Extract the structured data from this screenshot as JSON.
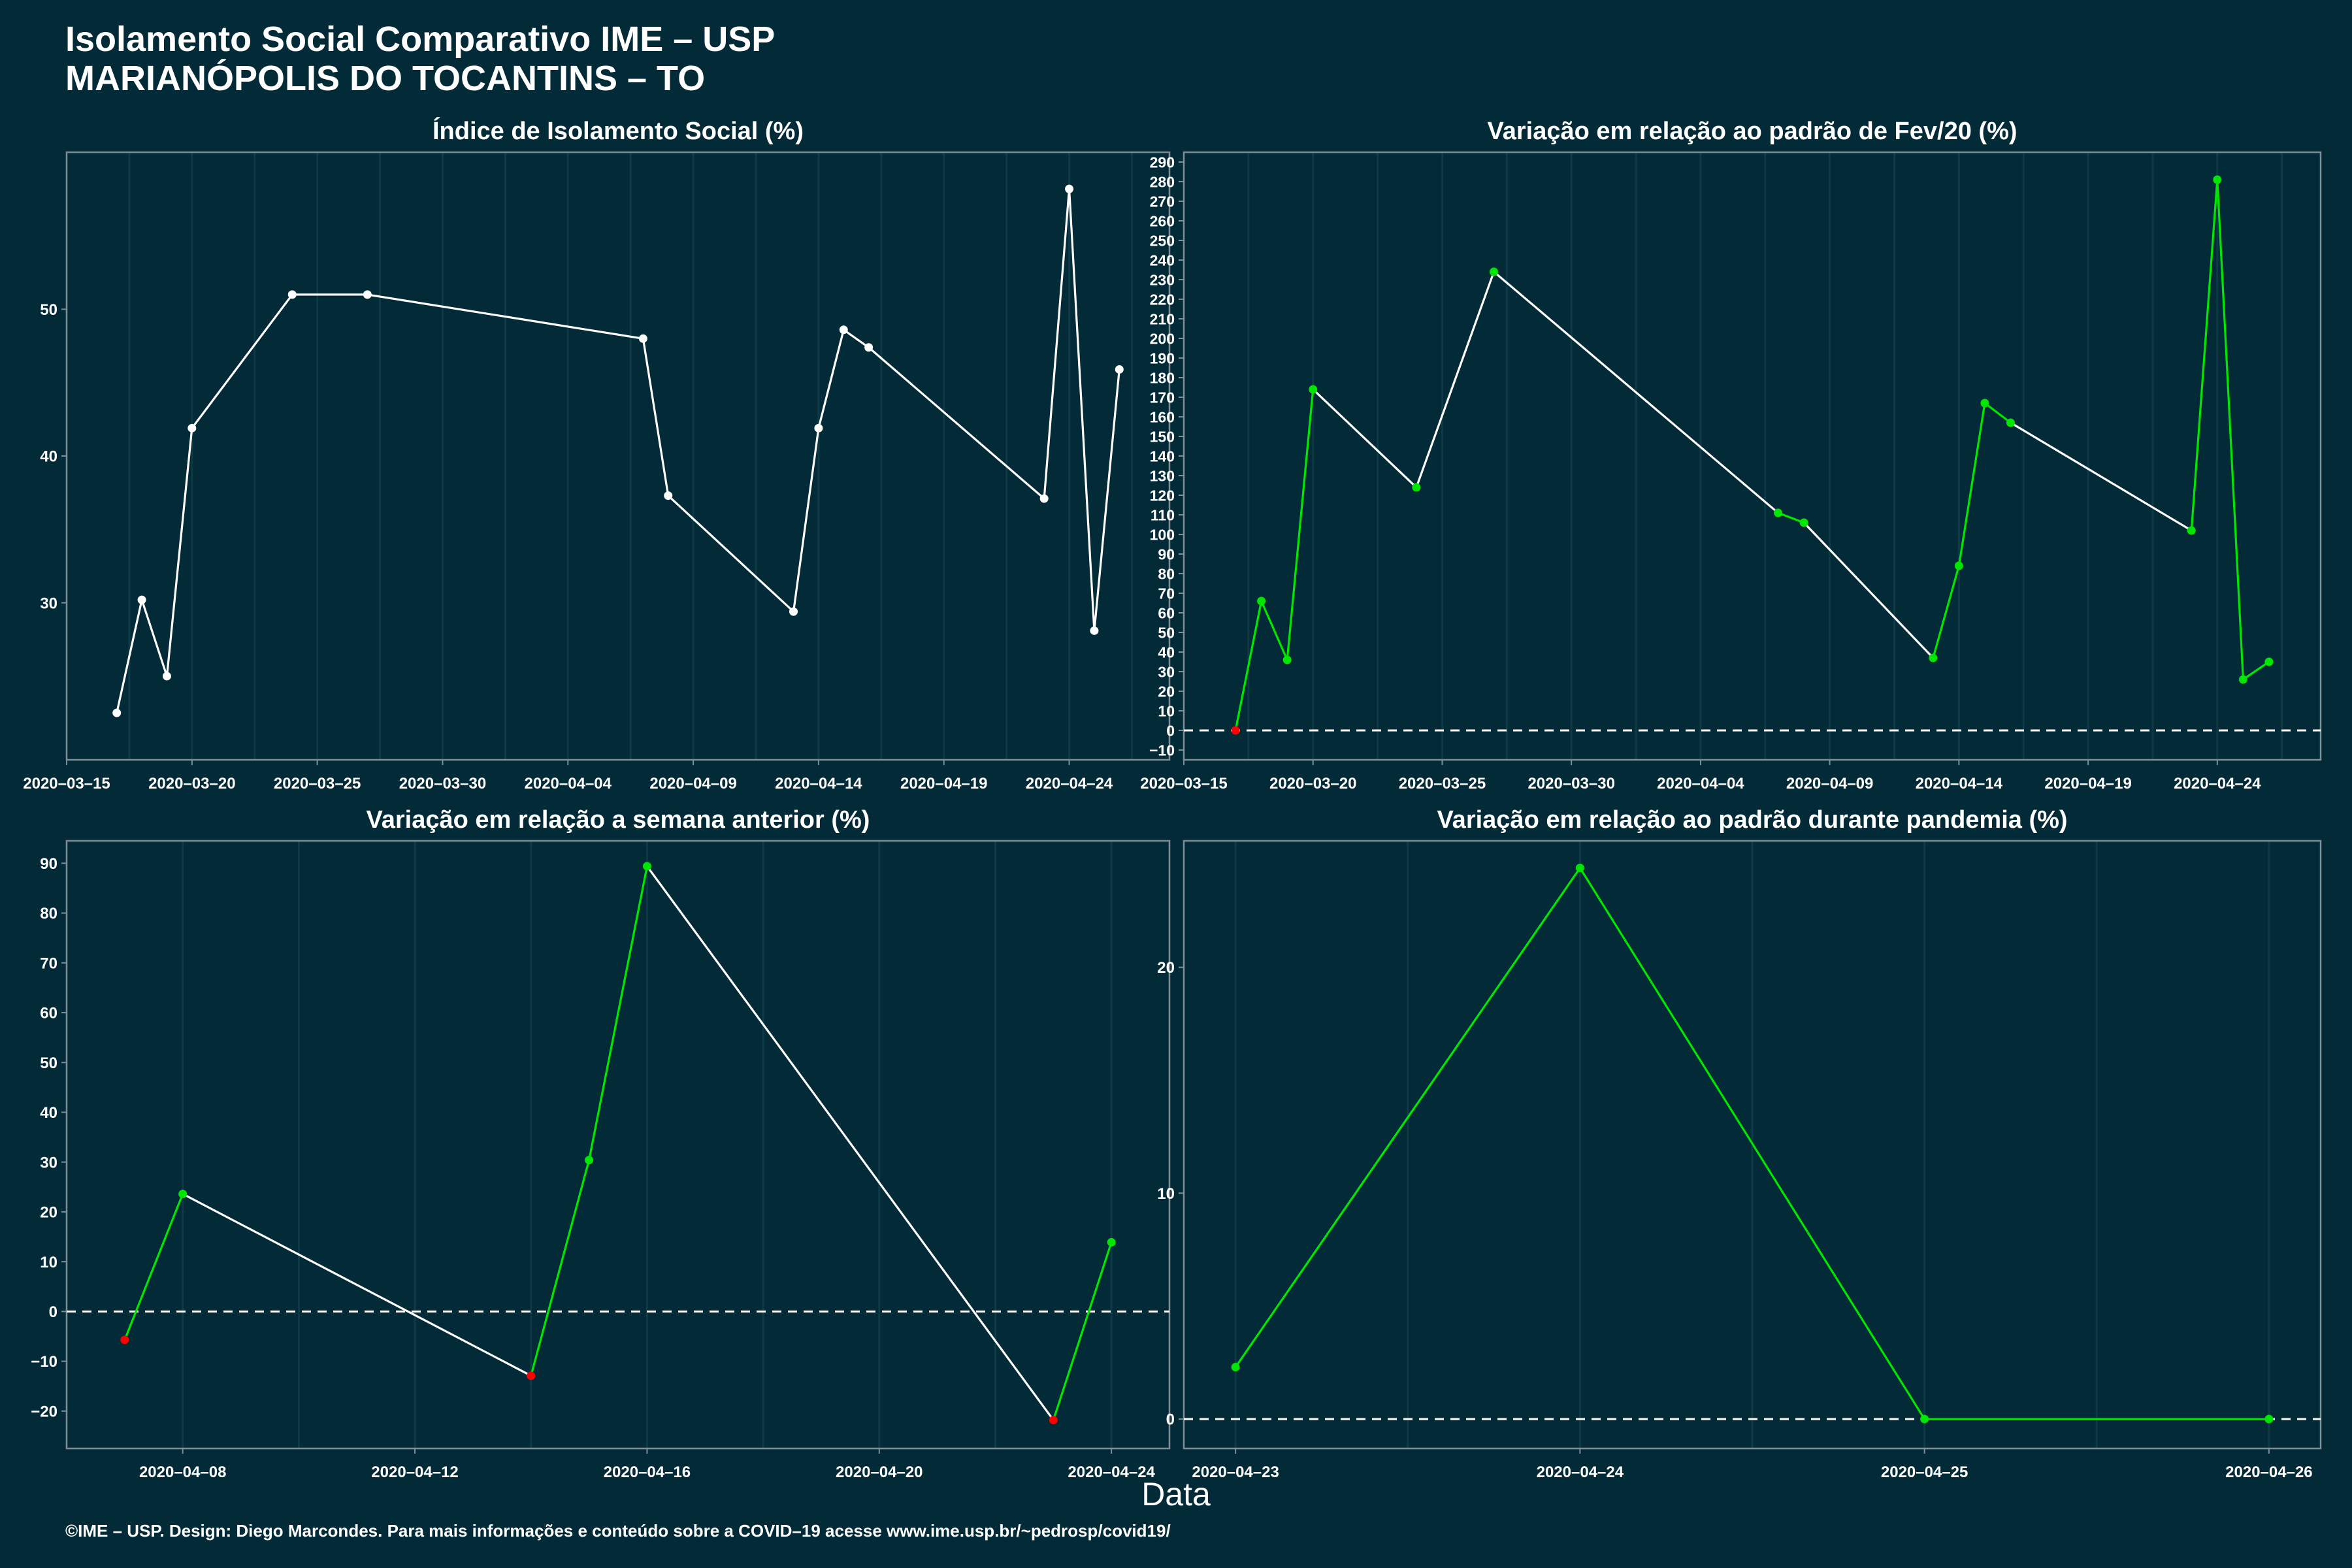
{
  "header": {
    "title_line1": "Isolamento Social Comparativo IME – USP",
    "title_line2": "MARIANÓPOLIS DO TOCANTINS – TO"
  },
  "x_axis_label": "Data",
  "footer": "©IME – USP. Design: Diego Marcondes. Para mais informações e conteúdo sobre a COVID–19 acesse www.ime.usp.br/~pedrosp/covid19/",
  "colors": {
    "background": "#022b37",
    "panel_border": "#7f8f95",
    "grid": "#0e3a46",
    "line_white": "#ffffff",
    "positive": "#00e600",
    "negative": "#ff0000"
  },
  "chart_data": [
    {
      "id": "p1",
      "type": "line",
      "title": "Índice de Isolamento Social (%)",
      "x_type": "date",
      "xlim": [
        "2020-03-15",
        "2020-04-28"
      ],
      "ylim": [
        19.3,
        60.7
      ],
      "x_ticks": [
        "2020-03-15",
        "2020-03-20",
        "2020-03-25",
        "2020-03-30",
        "2020-04-04",
        "2020-04-09",
        "2020-04-14",
        "2020-04-19",
        "2020-04-24"
      ],
      "x_tick_labels": [
        "2020–03–15",
        "2020–03–20",
        "2020–03–25",
        "2020–03–30",
        "2020–04–04",
        "2020–04–09",
        "2020–04–14",
        "2020–04–19",
        "2020–04–24"
      ],
      "y_ticks": [
        30,
        40,
        50
      ],
      "y_tick_labels": [
        "30",
        "40",
        "50"
      ],
      "zero_line": false,
      "color_mode": "white",
      "x": [
        "2020-03-17",
        "2020-03-18",
        "2020-03-19",
        "2020-03-20",
        "2020-03-24",
        "2020-03-27",
        "2020-04-07",
        "2020-04-08",
        "2020-04-13",
        "2020-04-14",
        "2020-04-15",
        "2020-04-16",
        "2020-04-23",
        "2020-04-24",
        "2020-04-25",
        "2020-04-26"
      ],
      "y": [
        22.5,
        30.2,
        25.0,
        41.9,
        51.0,
        51.0,
        48.0,
        37.3,
        29.4,
        41.9,
        48.6,
        47.4,
        37.1,
        58.2,
        28.1,
        45.9
      ]
    },
    {
      "id": "p2",
      "type": "line",
      "title": "Variação em relação ao padrão de Fev/20 (%)",
      "x_type": "date",
      "xlim": [
        "2020-03-15",
        "2020-04-28"
      ],
      "ylim": [
        -15,
        295
      ],
      "x_ticks": [
        "2020-03-15",
        "2020-03-20",
        "2020-03-25",
        "2020-03-30",
        "2020-04-04",
        "2020-04-09",
        "2020-04-14",
        "2020-04-19",
        "2020-04-24"
      ],
      "x_tick_labels": [
        "2020–03–15",
        "2020–03–20",
        "2020–03–25",
        "2020–03–30",
        "2020–04–04",
        "2020–04–09",
        "2020–04–14",
        "2020–04–19",
        "2020–04–24"
      ],
      "y_ticks": [
        -10,
        0,
        10,
        20,
        30,
        40,
        50,
        60,
        70,
        80,
        90,
        100,
        110,
        120,
        130,
        140,
        150,
        160,
        170,
        180,
        190,
        200,
        210,
        220,
        230,
        240,
        250,
        260,
        270,
        280,
        290
      ],
      "y_tick_labels": [
        "−10",
        "0",
        "10",
        "20",
        "30",
        "40",
        "50",
        "60",
        "70",
        "80",
        "90",
        "100",
        "110",
        "120",
        "130",
        "140",
        "150",
        "160",
        "170",
        "180",
        "190",
        "200",
        "210",
        "220",
        "230",
        "240",
        "250",
        "260",
        "270",
        "280",
        "290"
      ],
      "zero_line": true,
      "color_mode": "consecutive-days",
      "x": [
        "2020-03-17",
        "2020-03-18",
        "2020-03-19",
        "2020-03-20",
        "2020-03-24",
        "2020-03-27",
        "2020-04-07",
        "2020-04-08",
        "2020-04-13",
        "2020-04-14",
        "2020-04-15",
        "2020-04-16",
        "2020-04-23",
        "2020-04-24",
        "2020-04-25",
        "2020-04-26"
      ],
      "y": [
        0,
        66,
        36,
        174,
        124,
        234,
        111,
        106,
        37,
        84,
        167,
        157,
        102,
        281,
        26,
        35
      ]
    },
    {
      "id": "p3",
      "type": "line",
      "title": "Variação em relação a semana anterior (%)",
      "x_type": "date",
      "xlim": [
        "2020-04-06",
        "2020-04-25"
      ],
      "ylim": [
        -27.5,
        94.5
      ],
      "x_ticks": [
        "2020-04-08",
        "2020-04-12",
        "2020-04-16",
        "2020-04-20",
        "2020-04-24"
      ],
      "x_tick_labels": [
        "2020–04–08",
        "2020–04–12",
        "2020–04–16",
        "2020–04–20",
        "2020–04–24"
      ],
      "y_ticks": [
        -20,
        -10,
        0,
        10,
        20,
        30,
        40,
        50,
        60,
        70,
        80,
        90
      ],
      "y_tick_labels": [
        "−20",
        "−10",
        "0",
        "10",
        "20",
        "30",
        "40",
        "50",
        "60",
        "70",
        "80",
        "90"
      ],
      "zero_line": true,
      "color_mode": "consecutive-days",
      "x": [
        "2020-04-07",
        "2020-04-08",
        "2020-04-14",
        "2020-04-15",
        "2020-04-16",
        "2020-04-23",
        "2020-04-24"
      ],
      "y": [
        -5.7,
        23.6,
        -12.9,
        30.4,
        89.4,
        -21.8,
        13.9
      ]
    },
    {
      "id": "p4",
      "type": "line",
      "title": "Variação em relação ao padrão durante pandemia (%)",
      "x_type": "date",
      "xlim": [
        "2020-04-22.85",
        "2020-04-26.15"
      ],
      "ylim": [
        -1.3,
        25.6
      ],
      "x_ticks": [
        "2020-04-23",
        "2020-04-24",
        "2020-04-25",
        "2020-04-26"
      ],
      "x_tick_labels": [
        "2020–04–23",
        "2020–04–24",
        "2020–04–25",
        "2020–04–26"
      ],
      "y_ticks": [
        0,
        10,
        20
      ],
      "y_tick_labels": [
        "0",
        "10",
        "20"
      ],
      "zero_line": true,
      "color_mode": "consecutive-days",
      "x": [
        "2020-04-23",
        "2020-04-24",
        "2020-04-25",
        "2020-04-26"
      ],
      "y": [
        2.3,
        24.4,
        0,
        0
      ]
    }
  ]
}
